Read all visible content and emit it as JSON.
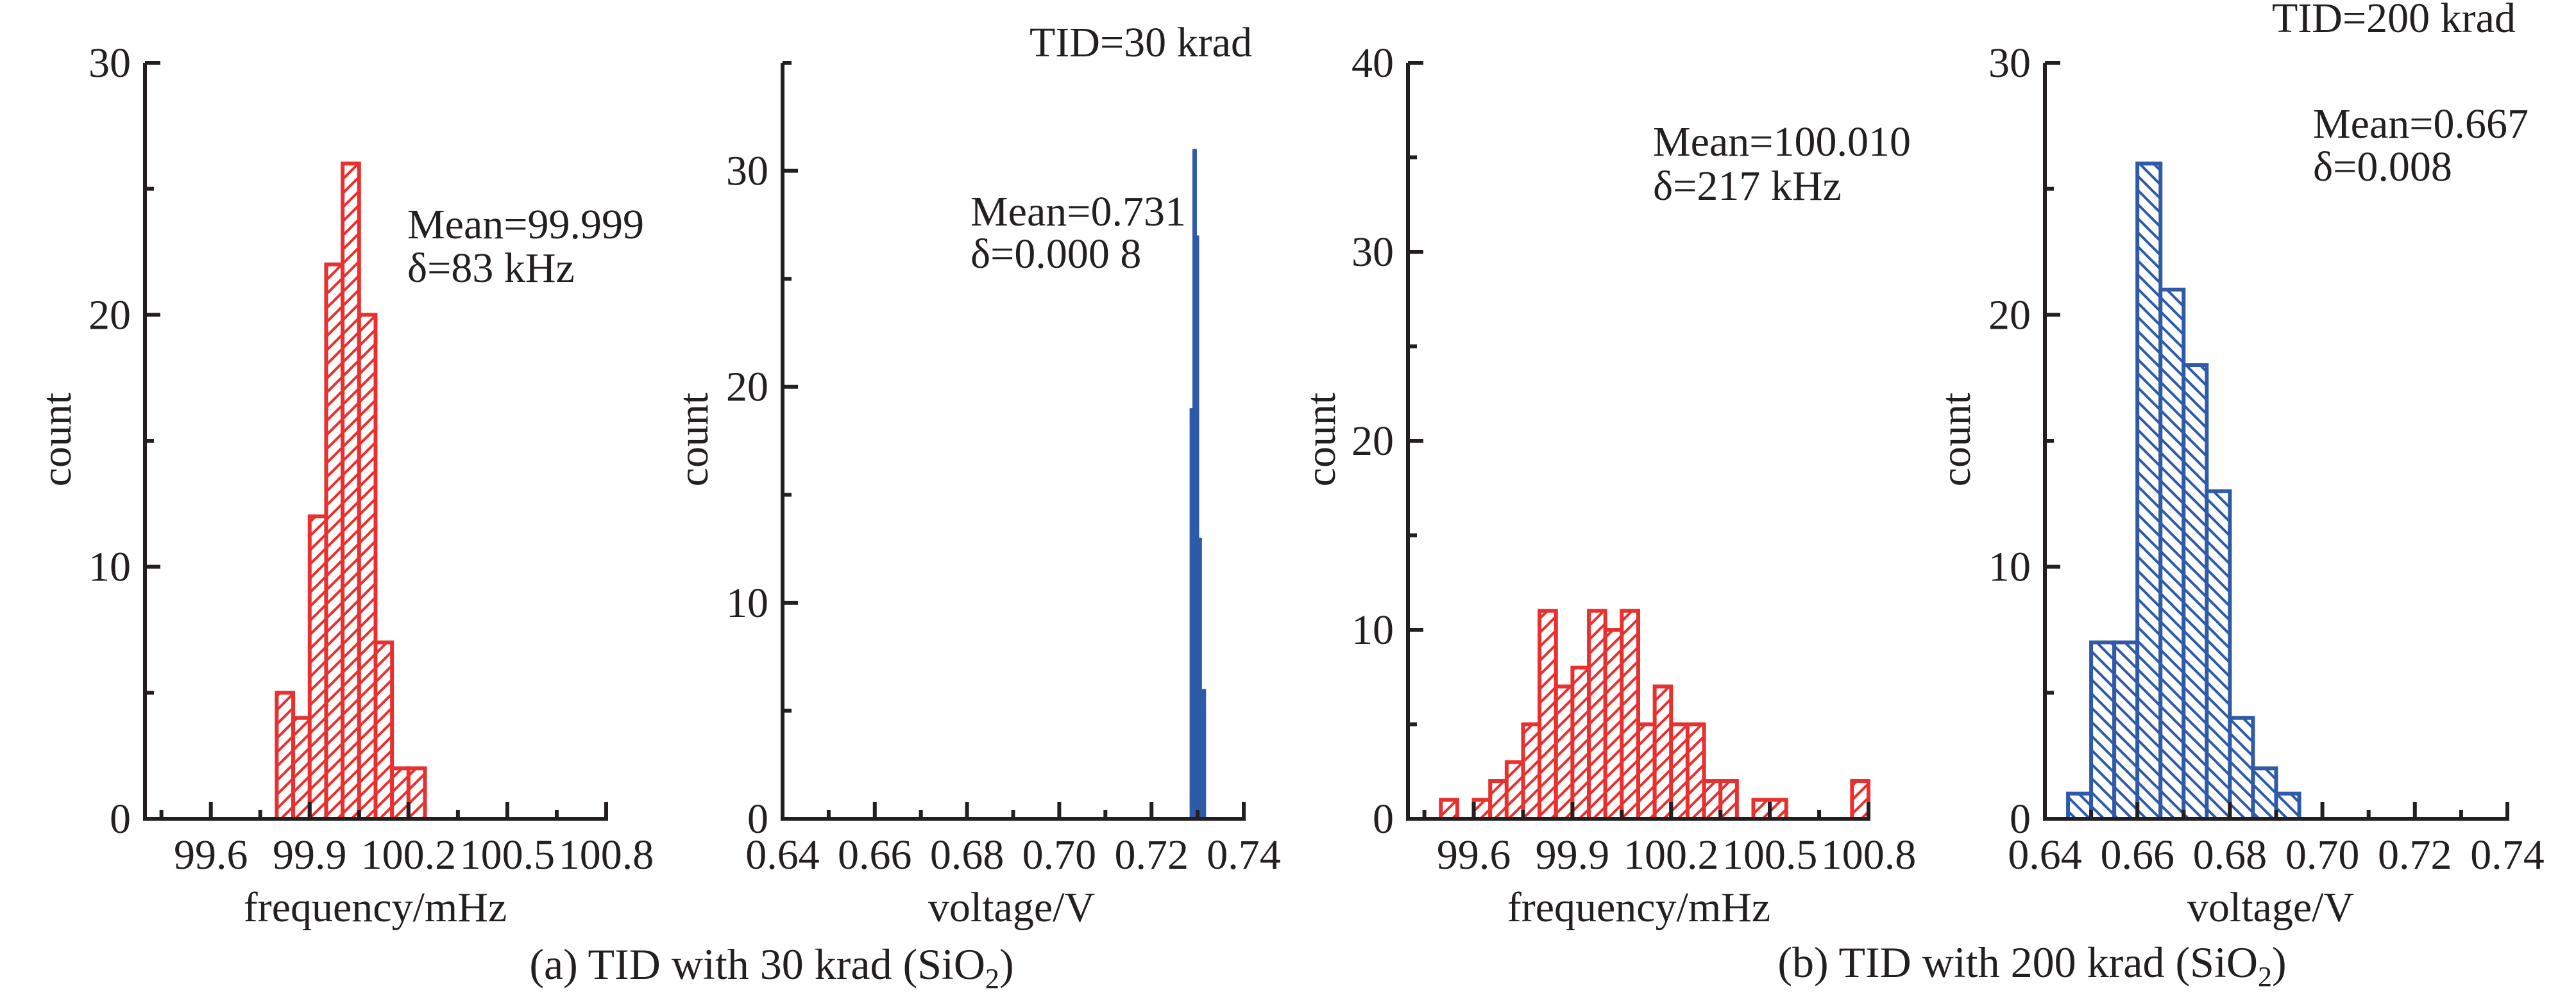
{
  "chart_data": [
    {
      "id": "a1",
      "type": "bar",
      "group": "a",
      "title": "",
      "xlabel": "frequency/mHz",
      "ylabel": "count",
      "xlim": [
        99.4,
        100.8
      ],
      "ylim": [
        0,
        30
      ],
      "xticks_major": [
        99.6,
        99.9,
        100.2,
        100.5,
        100.8
      ],
      "xtick_labels": [
        "99.6",
        "99.9",
        "100.2",
        "100.5",
        "100.8"
      ],
      "xticks_minor": [
        99.45,
        99.75,
        100.05,
        100.35,
        100.65
      ],
      "yticks_major": [
        0,
        10,
        20,
        30
      ],
      "ytick_labels": [
        "0",
        "10",
        "20",
        "30"
      ],
      "yticks_minor": [
        5,
        15,
        25
      ],
      "style": "hatched",
      "color": "#E8302F",
      "hatch_direction": "forward",
      "bins": [
        {
          "start": 99.8,
          "end": 99.85,
          "count": 5
        },
        {
          "start": 99.85,
          "end": 99.9,
          "count": 4
        },
        {
          "start": 99.9,
          "end": 99.95,
          "count": 12
        },
        {
          "start": 99.95,
          "end": 100.0,
          "count": 22
        },
        {
          "start": 100.0,
          "end": 100.05,
          "count": 26
        },
        {
          "start": 100.05,
          "end": 100.1,
          "count": 20
        },
        {
          "start": 100.1,
          "end": 100.15,
          "count": 7
        },
        {
          "start": 100.15,
          "end": 100.2,
          "count": 2
        },
        {
          "start": 100.2,
          "end": 100.25,
          "count": 2
        }
      ],
      "annotations": [
        "Mean=99.999",
        "δ=83 kHz"
      ],
      "header": "",
      "grid": false
    },
    {
      "id": "a2",
      "type": "bar",
      "group": "a",
      "title": "",
      "xlabel": "voltage/V",
      "ylabel": "count",
      "xlim": [
        0.64,
        0.74
      ],
      "ylim": [
        0,
        35
      ],
      "xticks_major": [
        0.64,
        0.66,
        0.68,
        0.7,
        0.72,
        0.74
      ],
      "xtick_labels": [
        "0.64",
        "0.66",
        "0.68",
        "0.70",
        "0.72",
        "0.74"
      ],
      "xticks_minor": [
        0.65,
        0.67,
        0.69,
        0.71,
        0.73
      ],
      "yticks_major": [
        0,
        10,
        20,
        30
      ],
      "ytick_labels": [
        "0",
        "10",
        "20",
        "30"
      ],
      "yticks_minor": [
        5,
        15,
        25,
        35
      ],
      "style": "solid",
      "color": "#2E5AA8",
      "hatch_direction": "none",
      "bins": [
        {
          "start": 0.7283,
          "end": 0.7289,
          "count": 19
        },
        {
          "start": 0.7289,
          "end": 0.7298,
          "count": 31
        },
        {
          "start": 0.7298,
          "end": 0.7303,
          "count": 27
        },
        {
          "start": 0.7303,
          "end": 0.7309,
          "count": 13
        },
        {
          "start": 0.7309,
          "end": 0.7318,
          "count": 6
        }
      ],
      "annotations": [
        "Mean=0.731",
        "δ=0.000 8"
      ],
      "header": "TID=30 krad",
      "grid": false
    },
    {
      "id": "b1",
      "type": "bar",
      "group": "b",
      "title": "",
      "xlabel": "frequency/mHz",
      "ylabel": "count",
      "xlim": [
        99.4,
        100.8
      ],
      "ylim": [
        0,
        40
      ],
      "xticks_major": [
        99.6,
        99.9,
        100.2,
        100.5,
        100.8
      ],
      "xtick_labels": [
        "99.6",
        "99.9",
        "100.2",
        "100.5",
        "100.8"
      ],
      "xticks_minor": [
        99.45,
        99.75,
        100.05,
        100.35,
        100.65
      ],
      "yticks_major": [
        0,
        10,
        20,
        30,
        40
      ],
      "ytick_labels": [
        "0",
        "10",
        "20",
        "30",
        "40"
      ],
      "yticks_minor": [
        5,
        15,
        25,
        35
      ],
      "style": "hatched",
      "color": "#E8302F",
      "hatch_direction": "forward",
      "bins": [
        {
          "start": 99.5,
          "end": 99.55,
          "count": 1
        },
        {
          "start": 99.6,
          "end": 99.65,
          "count": 1
        },
        {
          "start": 99.65,
          "end": 99.7,
          "count": 2
        },
        {
          "start": 99.7,
          "end": 99.75,
          "count": 3
        },
        {
          "start": 99.75,
          "end": 99.8,
          "count": 5
        },
        {
          "start": 99.8,
          "end": 99.85,
          "count": 11
        },
        {
          "start": 99.85,
          "end": 99.9,
          "count": 7
        },
        {
          "start": 99.9,
          "end": 99.95,
          "count": 8
        },
        {
          "start": 99.95,
          "end": 100.0,
          "count": 11
        },
        {
          "start": 100.0,
          "end": 100.05,
          "count": 10
        },
        {
          "start": 100.05,
          "end": 100.1,
          "count": 11
        },
        {
          "start": 100.1,
          "end": 100.15,
          "count": 5
        },
        {
          "start": 100.15,
          "end": 100.2,
          "count": 7
        },
        {
          "start": 100.2,
          "end": 100.25,
          "count": 5
        },
        {
          "start": 100.25,
          "end": 100.3,
          "count": 5
        },
        {
          "start": 100.3,
          "end": 100.35,
          "count": 2
        },
        {
          "start": 100.35,
          "end": 100.4,
          "count": 2
        },
        {
          "start": 100.45,
          "end": 100.5,
          "count": 1
        },
        {
          "start": 100.5,
          "end": 100.55,
          "count": 1
        },
        {
          "start": 100.75,
          "end": 100.8,
          "count": 2
        }
      ],
      "annotations": [
        "Mean=100.010",
        "δ=217 kHz"
      ],
      "header": "",
      "grid": false
    },
    {
      "id": "b2",
      "type": "bar",
      "group": "b",
      "title": "",
      "xlabel": "voltage/V",
      "ylabel": "count",
      "xlim": [
        0.64,
        0.74
      ],
      "ylim": [
        0,
        30
      ],
      "xticks_major": [
        0.64,
        0.66,
        0.68,
        0.7,
        0.72,
        0.74
      ],
      "xtick_labels": [
        "0.64",
        "0.66",
        "0.68",
        "0.70",
        "0.72",
        "0.74"
      ],
      "xticks_minor": [
        0.65,
        0.67,
        0.69,
        0.71,
        0.73
      ],
      "yticks_major": [
        0,
        10,
        20,
        30
      ],
      "ytick_labels": [
        "0",
        "10",
        "20",
        "30"
      ],
      "yticks_minor": [
        5,
        15,
        25
      ],
      "style": "hatched",
      "color": "#2E5AA8",
      "hatch_direction": "backward",
      "bins": [
        {
          "start": 0.645,
          "end": 0.65,
          "count": 1
        },
        {
          "start": 0.65,
          "end": 0.655,
          "count": 7
        },
        {
          "start": 0.655,
          "end": 0.66,
          "count": 7
        },
        {
          "start": 0.66,
          "end": 0.665,
          "count": 26
        },
        {
          "start": 0.665,
          "end": 0.67,
          "count": 21
        },
        {
          "start": 0.67,
          "end": 0.675,
          "count": 18
        },
        {
          "start": 0.675,
          "end": 0.68,
          "count": 13
        },
        {
          "start": 0.68,
          "end": 0.685,
          "count": 4
        },
        {
          "start": 0.685,
          "end": 0.69,
          "count": 2
        },
        {
          "start": 0.69,
          "end": 0.695,
          "count": 1
        }
      ],
      "annotations": [
        "Mean=0.667",
        "δ=0.008"
      ],
      "header": "TID=200 krad",
      "grid": false
    }
  ],
  "captions": {
    "a": {
      "prefix": "(a) TID with 30 krad (SiO",
      "subscript": "2",
      "suffix": ")"
    },
    "b": {
      "prefix": "(b) TID with 200 krad (SiO",
      "subscript": "2",
      "suffix": ")"
    }
  }
}
